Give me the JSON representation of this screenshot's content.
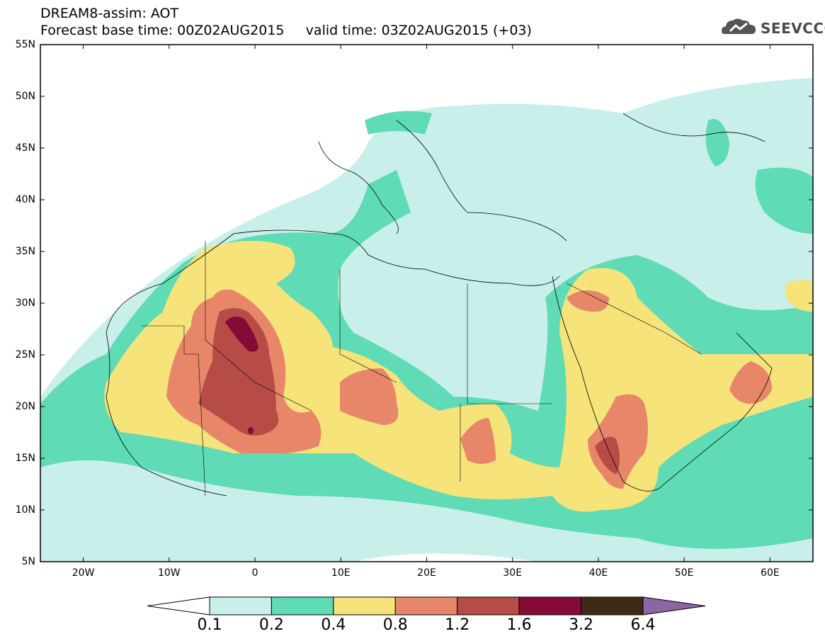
{
  "header": {
    "title_line1": "DREAM8-assim: AOT",
    "title_line2": "Forecast base time: 00Z02AUG2015     valid time: 03Z02AUG2015 (+03)",
    "logo_text": "SEEVCCC"
  },
  "map": {
    "lat_labels": [
      "55N",
      "50N",
      "45N",
      "40N",
      "35N",
      "30N",
      "25N",
      "20N",
      "15N",
      "10N",
      "5N"
    ],
    "lon_labels": [
      "20W",
      "10W",
      "0",
      "10E",
      "20E",
      "30E",
      "40E",
      "50E",
      "60E"
    ],
    "lon_range": [
      -25,
      65
    ],
    "lat_range": [
      5,
      55
    ]
  },
  "colorbar": {
    "levels": [
      "0.1",
      "0.2",
      "0.4",
      "0.8",
      "1.2",
      "1.6",
      "3.2",
      "6.4"
    ],
    "colors": [
      "#ffffff",
      "#c8efea",
      "#5fdbb6",
      "#f6e37a",
      "#e8866a",
      "#b74b45",
      "#850a37",
      "#3f2a16",
      "#8a66a4"
    ]
  }
}
